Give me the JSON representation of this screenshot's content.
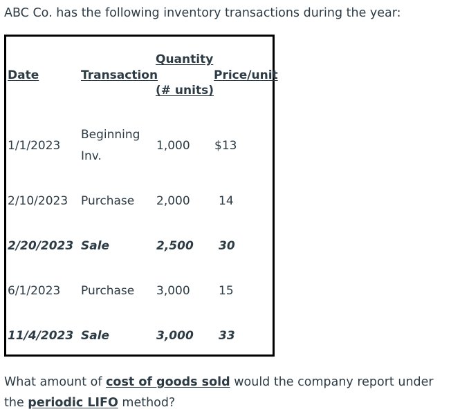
{
  "intro": "ABC Co. has the following inventory transactions during the year:",
  "table": {
    "headers": {
      "date": "Date",
      "transaction": "Transaction",
      "quantity_line1": "Quantity",
      "quantity_line2": "(# units)",
      "price": "Price/unit"
    },
    "rows": [
      {
        "date": "1/1/2023",
        "transaction_line1": "Beginning",
        "transaction_line2": "Inv.",
        "quantity": "1,000",
        "price": "$13"
      },
      {
        "date": "2/10/2023",
        "transaction": "Purchase",
        "quantity": "2,000",
        "price": "14"
      },
      {
        "date": "2/20/2023",
        "transaction": "Sale",
        "quantity": "2,500",
        "price": "30"
      },
      {
        "date": "6/1/2023",
        "transaction": "Purchase",
        "quantity": "3,000",
        "price": "15"
      },
      {
        "date": "11/4/2023",
        "transaction": "Sale",
        "quantity": "3,000",
        "price": "33"
      }
    ]
  },
  "question": {
    "part1": "What amount of ",
    "term1": "cost of goods sold",
    "part2": " would the company report under the ",
    "term2": "periodic LIFO",
    "part3": " method?"
  }
}
